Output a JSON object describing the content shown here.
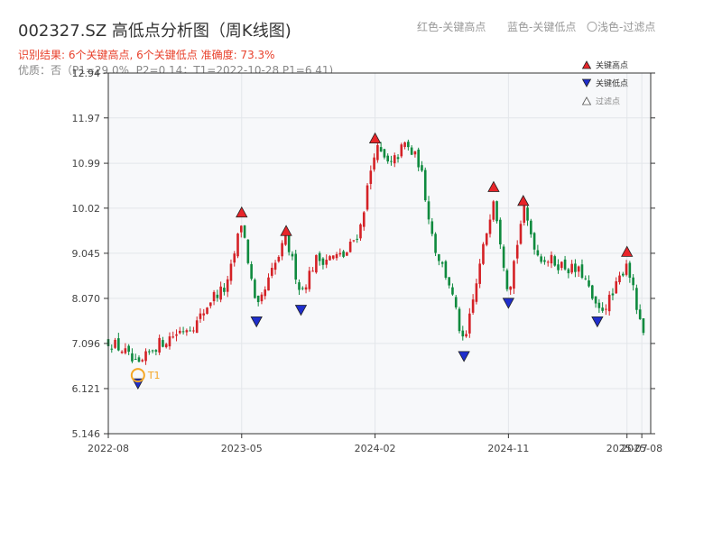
{
  "header": {
    "title": "002327.SZ 高低点分析图（周K线图)",
    "legend_red": "红色-关键高点",
    "legend_blue": "蓝色-关键低点",
    "legend_light": "〇浅色-过滤点",
    "result_line": "识别结果: 6个关键高点, 6个关键低点  准确度: 73.3%",
    "info_line": "优质：否（P1=29.0%, P2=0.14；T1=2022-10-28 P1=6.41)"
  },
  "chart_data": {
    "type": "candlestick",
    "x_ticks": [
      "2022-08",
      "2023-05",
      "2024-02",
      "2024-11",
      "2025-07",
      "2025-08"
    ],
    "y_ticks": [
      "5.146",
      "6.121",
      "7.096",
      "8.070",
      "9.045",
      "10.02",
      "10.99",
      "11.97",
      "12.94"
    ],
    "ylim": [
      5.146,
      12.94
    ],
    "xlim": [
      "2022-08",
      "2025-08"
    ],
    "grid": true,
    "legend": {
      "position": "top-right",
      "items": [
        {
          "label": "关键高点",
          "marker": "up-triangle",
          "color": "#e8252a"
        },
        {
          "label": "关键低点",
          "marker": "down-triangle",
          "color": "#1f2ecc"
        },
        {
          "label": "过滤点",
          "marker": "up-triangle-light",
          "color": "#999999"
        }
      ]
    },
    "colors": {
      "up": "#d42126",
      "down": "#0e8a3e",
      "high": "#e8252a",
      "low": "#1f2ecc",
      "t1": "#f5a623"
    },
    "price_path": [
      [
        "2022-08",
        7.15
      ],
      [
        "2022-09",
        6.95
      ],
      [
        "2022-10",
        6.55
      ],
      [
        "2022-11",
        7.0
      ],
      [
        "2023-01",
        7.4
      ],
      [
        "2023-02",
        7.55
      ],
      [
        "2023-03",
        8.1
      ],
      [
        "2023-04",
        8.3
      ],
      [
        "2023-05",
        9.75
      ],
      [
        "2023-06",
        7.75
      ],
      [
        "2023-07",
        8.6
      ],
      [
        "2023-08",
        9.35
      ],
      [
        "2023-09",
        8.2
      ],
      [
        "2023-10",
        8.9
      ],
      [
        "2023-12",
        9.0
      ],
      [
        "2024-01",
        9.6
      ],
      [
        "2024-02",
        11.35
      ],
      [
        "2024-03",
        10.9
      ],
      [
        "2024-04",
        11.4
      ],
      [
        "2024-05",
        11.0
      ],
      [
        "2024-06",
        9.2
      ],
      [
        "2024-07",
        8.4
      ],
      [
        "2024-08",
        7.0
      ],
      [
        "2024-10",
        10.3
      ],
      [
        "2024-11",
        8.2
      ],
      [
        "2024-12",
        10.0
      ],
      [
        "2025-01",
        9.0
      ],
      [
        "2025-04",
        8.6
      ],
      [
        "2025-05",
        7.75
      ],
      [
        "2025-06",
        8.1
      ],
      [
        "2025-07",
        8.9
      ],
      [
        "2025-08",
        7.3
      ]
    ],
    "key_highs": [
      {
        "date": "2023-05",
        "price": 9.75
      },
      {
        "date": "2023-08",
        "price": 9.35
      },
      {
        "date": "2024-02",
        "price": 11.35
      },
      {
        "date": "2024-10",
        "price": 10.3
      },
      {
        "date": "2024-12",
        "price": 10.0
      },
      {
        "date": "2025-07",
        "price": 8.9
      }
    ],
    "key_lows": [
      {
        "date": "2022-10",
        "price": 6.41
      },
      {
        "date": "2023-06",
        "price": 7.75
      },
      {
        "date": "2023-09",
        "price": 8.0
      },
      {
        "date": "2024-08",
        "price": 7.0
      },
      {
        "date": "2024-11",
        "price": 8.15
      },
      {
        "date": "2025-05",
        "price": 7.75
      }
    ],
    "annotations": [
      {
        "label": "T1",
        "date": "2022-10",
        "price": 6.41
      }
    ]
  }
}
